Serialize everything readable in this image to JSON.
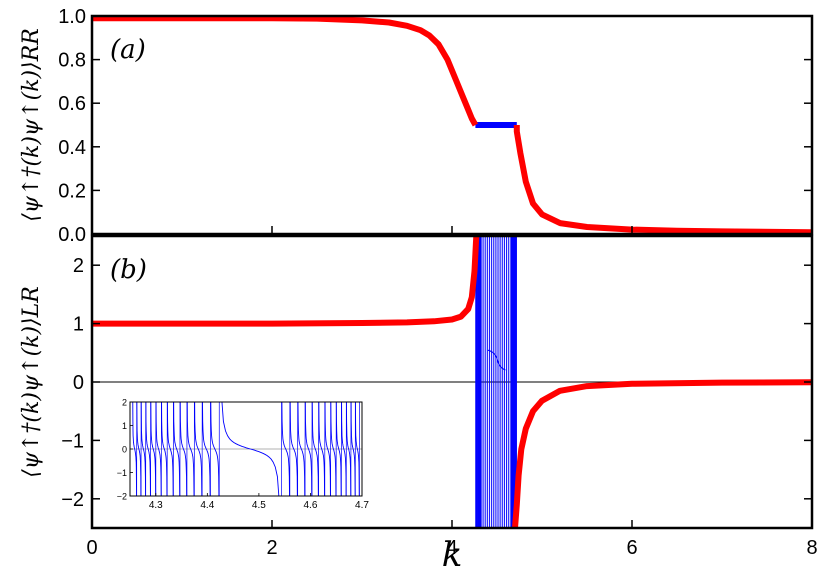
{
  "chart_data": [
    {
      "panel_label": "(a)",
      "type": "line",
      "ylabel": "⟨ψ↑†(k)ψ↑(k)⟩RR",
      "ylim": [
        0,
        1.0
      ],
      "xlim": [
        0,
        8
      ],
      "yticks": [
        "0.0",
        "0.2",
        "0.4",
        "0.6",
        "0.8",
        "1.0"
      ],
      "xticks": [],
      "grid": false,
      "series": [
        {
          "color": "#ff0000",
          "x": [
            0,
            1,
            2,
            2.5,
            3,
            3.3,
            3.5,
            3.65,
            3.75,
            3.85,
            3.95,
            4.05,
            4.12,
            4.18,
            4.22,
            4.26,
            4.26
          ],
          "y": [
            0.99,
            0.99,
            0.99,
            0.988,
            0.98,
            0.97,
            0.955,
            0.935,
            0.91,
            0.87,
            0.8,
            0.7,
            0.63,
            0.57,
            0.53,
            0.5,
            0.5
          ]
        },
        {
          "color": "#0000ff",
          "x": [
            4.26,
            4.72
          ],
          "y": [
            0.5,
            0.5
          ]
        },
        {
          "color": "#ff0000",
          "x": [
            4.72,
            4.72,
            4.76,
            4.82,
            4.9,
            5.0,
            5.2,
            5.5,
            6,
            6.5,
            7,
            8
          ],
          "y": [
            0.5,
            0.47,
            0.37,
            0.24,
            0.14,
            0.09,
            0.05,
            0.032,
            0.02,
            0.015,
            0.012,
            0.008
          ]
        }
      ]
    },
    {
      "panel_label": "(b)",
      "type": "line",
      "ylabel": "⟨ψ↑†(k)ψ↑(k)⟩LR",
      "ylim": [
        -2.5,
        2.5
      ],
      "xlim": [
        0,
        8
      ],
      "yticks": [
        "−2",
        "−1",
        "0",
        "1",
        "2"
      ],
      "xticks": [
        "0",
        "2",
        "4",
        "6",
        "8"
      ],
      "xlabel": "k",
      "grid": false,
      "series": [
        {
          "color": "#ff0000",
          "x": [
            0,
            1,
            2,
            3,
            3.5,
            3.8,
            4.0,
            4.1,
            4.18,
            4.22,
            4.25,
            4.27
          ],
          "y": [
            1.0,
            1.0,
            1.0,
            1.01,
            1.02,
            1.04,
            1.07,
            1.12,
            1.25,
            1.45,
            1.9,
            2.5
          ]
        },
        {
          "color": "#ff0000",
          "x": [
            4.7,
            4.72,
            4.74,
            4.77,
            4.82,
            4.9,
            5.0,
            5.2,
            5.5,
            6,
            7,
            8
          ],
          "y": [
            -2.5,
            -2.1,
            -1.6,
            -1.15,
            -0.8,
            -0.5,
            -0.32,
            -0.15,
            -0.07,
            -0.03,
            -0.01,
            -0.005
          ]
        }
      ],
      "blue_band_x": [
        4.26,
        4.72
      ],
      "inset": {
        "type": "line",
        "xlim": [
          4.25,
          4.7
        ],
        "ylim": [
          -2,
          2
        ],
        "xticks": [
          "4.3",
          "4.4",
          "4.5",
          "4.6",
          "4.7"
        ],
        "yticks": [
          "−2",
          "−1",
          "0",
          "1",
          "2"
        ],
        "color": "#0000ff",
        "description_free": true
      }
    }
  ]
}
